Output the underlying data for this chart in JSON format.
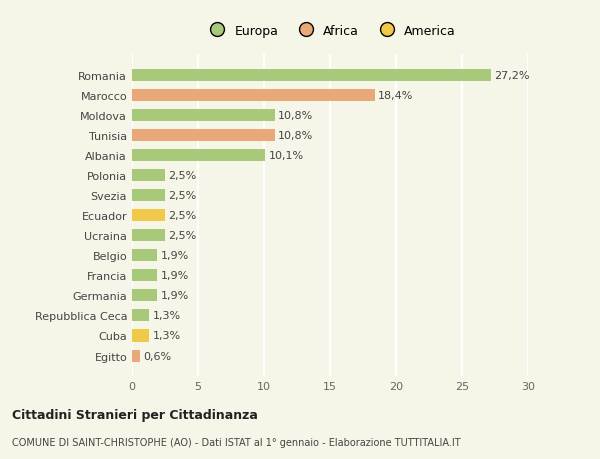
{
  "countries": [
    "Romania",
    "Marocco",
    "Moldova",
    "Tunisia",
    "Albania",
    "Polonia",
    "Svezia",
    "Ecuador",
    "Ucraina",
    "Belgio",
    "Francia",
    "Germania",
    "Repubblica Ceca",
    "Cuba",
    "Egitto"
  ],
  "values": [
    27.2,
    18.4,
    10.8,
    10.8,
    10.1,
    2.5,
    2.5,
    2.5,
    2.5,
    1.9,
    1.9,
    1.9,
    1.3,
    1.3,
    0.6
  ],
  "labels": [
    "27,2%",
    "18,4%",
    "10,8%",
    "10,8%",
    "10,1%",
    "2,5%",
    "2,5%",
    "2,5%",
    "2,5%",
    "1,9%",
    "1,9%",
    "1,9%",
    "1,3%",
    "1,3%",
    "0,6%"
  ],
  "continents": [
    "Europa",
    "Africa",
    "Europa",
    "Africa",
    "Europa",
    "Europa",
    "Europa",
    "America",
    "Europa",
    "Europa",
    "Europa",
    "Europa",
    "Europa",
    "America",
    "Africa"
  ],
  "colors": {
    "Europa": "#a8c87a",
    "Africa": "#e8a878",
    "America": "#f0c84a"
  },
  "xlim": [
    0,
    30
  ],
  "xticks": [
    0,
    5,
    10,
    15,
    20,
    25,
    30
  ],
  "title1": "Cittadini Stranieri per Cittadinanza",
  "title2": "COMUNE DI SAINT-CHRISTOPHE (AO) - Dati ISTAT al 1° gennaio - Elaborazione TUTTITALIA.IT",
  "background_color": "#f5f5e8",
  "grid_color": "#ffffff",
  "bar_height": 0.6,
  "label_fontsize": 8,
  "ytick_fontsize": 8,
  "xtick_fontsize": 8
}
